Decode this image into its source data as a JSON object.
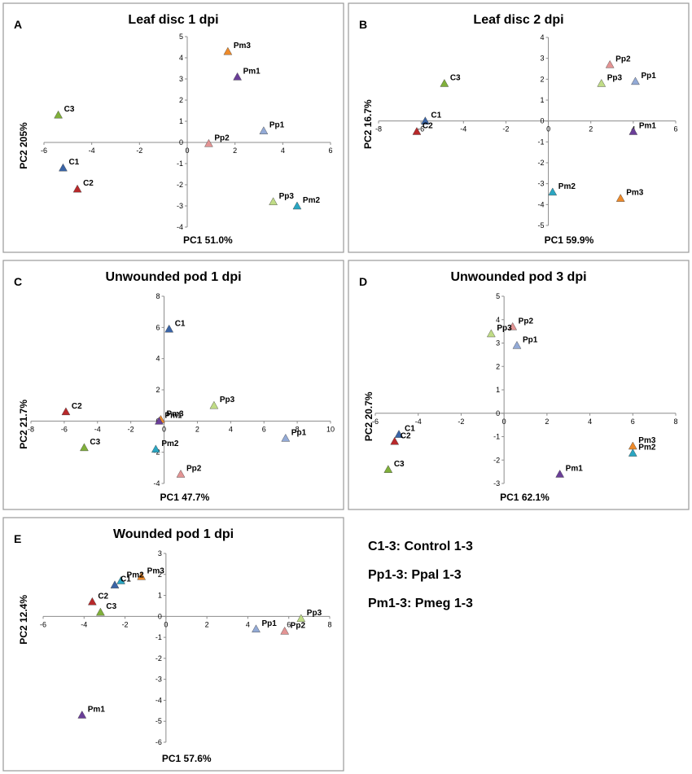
{
  "legend": [
    "C1-3: Control 1-3",
    "Pp1-3: Ppal 1-3",
    "Pm1-3: Pmeg 1-3"
  ],
  "colors": {
    "C1": "#3a64a6",
    "C2": "#b8282a",
    "C3": "#80b03a",
    "Pp1": "#93aad6",
    "Pp2": "#e39494",
    "Pp3": "#c0dc86",
    "Pm1": "#6a3e98",
    "Pm2": "#2aa6c2",
    "Pm3": "#ee8a2a"
  },
  "chart_data": [
    {
      "letter": "A",
      "title": "Leaf disc 1 dpi",
      "type": "scatter",
      "xlabel": "PC1 51.0%",
      "ylabel": "PC2 205%",
      "xlim": [
        -6,
        6
      ],
      "ylim": [
        -4,
        5
      ],
      "xticks": [
        -6,
        -4,
        -2,
        0,
        2,
        4,
        6
      ],
      "yticks": [
        -4,
        -3,
        -2,
        -1,
        0,
        1,
        2,
        3,
        4,
        5
      ],
      "points": [
        {
          "label": "Pm3",
          "x": 1.7,
          "y": 4.3
        },
        {
          "label": "Pm1",
          "x": 2.1,
          "y": 3.1
        },
        {
          "label": "C3",
          "x": -5.4,
          "y": 1.3
        },
        {
          "label": "Pp1",
          "x": 3.2,
          "y": 0.55
        },
        {
          "label": "Pp2",
          "x": 0.9,
          "y": -0.05
        },
        {
          "label": "C1",
          "x": -5.2,
          "y": -1.2
        },
        {
          "label": "C2",
          "x": -4.6,
          "y": -2.2
        },
        {
          "label": "Pp3",
          "x": 3.6,
          "y": -2.8
        },
        {
          "label": "Pm2",
          "x": 4.6,
          "y": -3.0
        }
      ]
    },
    {
      "letter": "B",
      "title": "Leaf disc 2 dpi",
      "type": "scatter",
      "xlabel": "PC1 59.9%",
      "ylabel": "PC2 16.7%",
      "xlim": [
        -8,
        6
      ],
      "ylim": [
        -5,
        4
      ],
      "xticks": [
        -8,
        -6,
        -4,
        -2,
        0,
        2,
        4,
        6
      ],
      "yticks": [
        -5,
        -4,
        -3,
        -2,
        -1,
        0,
        1,
        2,
        3,
        4
      ],
      "points": [
        {
          "label": "Pp2",
          "x": 2.9,
          "y": 2.7
        },
        {
          "label": "Pp1",
          "x": 4.1,
          "y": 1.9
        },
        {
          "label": "Pp3",
          "x": 2.5,
          "y": 1.8
        },
        {
          "label": "C3",
          "x": -4.9,
          "y": 1.8
        },
        {
          "label": "C1",
          "x": -5.8,
          "y": 0.0
        },
        {
          "label": "C2",
          "x": -6.2,
          "y": -0.5
        },
        {
          "label": "Pm1",
          "x": 4.0,
          "y": -0.5
        },
        {
          "label": "Pm2",
          "x": 0.2,
          "y": -3.4
        },
        {
          "label": "Pm3",
          "x": 3.4,
          "y": -3.7
        }
      ]
    },
    {
      "letter": "C",
      "title": "Unwounded pod 1 dpi",
      "type": "scatter",
      "xlabel": "PC1 47.7%",
      "ylabel": "PC2 21.7%",
      "xlim": [
        -8,
        10
      ],
      "ylim": [
        -4,
        8
      ],
      "xticks": [
        -8,
        -6,
        -4,
        -2,
        0,
        2,
        4,
        6,
        8,
        10
      ],
      "yticks": [
        -4,
        -2,
        0,
        2,
        4,
        6,
        8
      ],
      "points": [
        {
          "label": "C1",
          "x": 0.3,
          "y": 5.9
        },
        {
          "label": "Pp3",
          "x": 3.0,
          "y": 1.0
        },
        {
          "label": "C2",
          "x": -5.9,
          "y": 0.6
        },
        {
          "label": "Pm3",
          "x": -0.2,
          "y": 0.1
        },
        {
          "label": "Pm1",
          "x": -0.3,
          "y": 0.0
        },
        {
          "label": "C3",
          "x": -4.8,
          "y": -1.7
        },
        {
          "label": "Pm2",
          "x": -0.5,
          "y": -1.8
        },
        {
          "label": "Pp1",
          "x": 7.3,
          "y": -1.1
        },
        {
          "label": "Pp2",
          "x": 1.0,
          "y": -3.4
        }
      ]
    },
    {
      "letter": "D",
      "title": "Unwounded pod 3 dpi",
      "type": "scatter",
      "xlabel": "PC1 62.1%",
      "ylabel": "PC2 20.7%",
      "xlim": [
        -6,
        8
      ],
      "ylim": [
        -3,
        5
      ],
      "xticks": [
        -6,
        -4,
        -2,
        0,
        2,
        4,
        6,
        8
      ],
      "yticks": [
        -3,
        -2,
        -1,
        0,
        1,
        2,
        3,
        4,
        5
      ],
      "points": [
        {
          "label": "Pp2",
          "x": 0.4,
          "y": 3.7
        },
        {
          "label": "Pp3",
          "x": -0.6,
          "y": 3.4
        },
        {
          "label": "Pp1",
          "x": 0.6,
          "y": 2.9
        },
        {
          "label": "C1",
          "x": -4.9,
          "y": -0.9
        },
        {
          "label": "C2",
          "x": -5.1,
          "y": -1.2
        },
        {
          "label": "Pm3",
          "x": 6.0,
          "y": -1.4
        },
        {
          "label": "Pm2",
          "x": 6.0,
          "y": -1.7
        },
        {
          "label": "C3",
          "x": -5.4,
          "y": -2.4
        },
        {
          "label": "Pm1",
          "x": 2.6,
          "y": -2.6
        }
      ]
    },
    {
      "letter": "E",
      "title": "Wounded pod 1 dpi",
      "type": "scatter",
      "xlabel": "PC1 57.6%",
      "ylabel": "PC2 12.4%",
      "xlim": [
        -6,
        8
      ],
      "ylim": [
        -6,
        3
      ],
      "xticks": [
        -6,
        -4,
        -2,
        0,
        2,
        4,
        6,
        8
      ],
      "yticks": [
        -6,
        -5,
        -4,
        -3,
        -2,
        -1,
        0,
        1,
        2,
        3
      ],
      "points": [
        {
          "label": "Pm3",
          "x": -1.2,
          "y": 1.9
        },
        {
          "label": "Pm2",
          "x": -2.2,
          "y": 1.7
        },
        {
          "label": "C1",
          "x": -2.5,
          "y": 1.5
        },
        {
          "label": "C2",
          "x": -3.6,
          "y": 0.7
        },
        {
          "label": "C3",
          "x": -3.2,
          "y": 0.2
        },
        {
          "label": "Pp3",
          "x": 6.6,
          "y": -0.1
        },
        {
          "label": "Pp1",
          "x": 4.4,
          "y": -0.6
        },
        {
          "label": "Pp2",
          "x": 5.8,
          "y": -0.7
        },
        {
          "label": "Pm1",
          "x": -4.1,
          "y": -4.7
        }
      ]
    }
  ]
}
